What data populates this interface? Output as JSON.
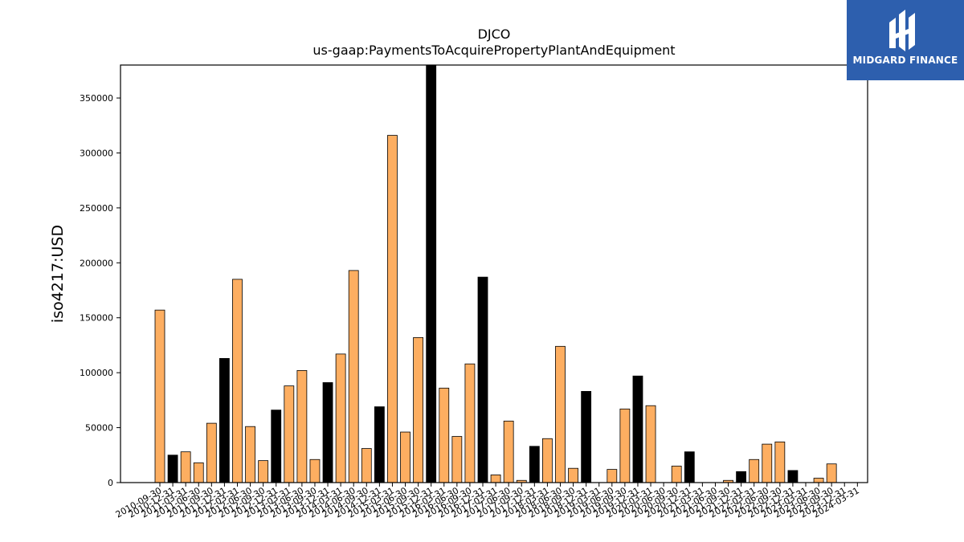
{
  "brand": {
    "name": "MIDGARD FINANCE",
    "background": "#2d5fae",
    "logo_icon": "midgard-mark-icon"
  },
  "chart_data": {
    "type": "bar",
    "title": "DJCO",
    "subtitle": "us-gaap:PaymentsToAcquirePropertyPlantAndEquipment",
    "ylabel": "iso4217:USD",
    "xlabel": "",
    "ylim": [
      0,
      380000
    ],
    "yticks": [
      0,
      50000,
      100000,
      150000,
      200000,
      250000,
      300000,
      350000
    ],
    "grid": false,
    "legend": "none",
    "colors": {
      "regular": "#fdae61",
      "fiscal_year_end": "#000000",
      "edge": "#000000"
    },
    "categories": [
      "2010-09-30",
      "2010-12-31",
      "2011-03-31",
      "2011-06-30",
      "2011-09-30",
      "2011-12-31",
      "2012-03-31",
      "2012-06-30",
      "2012-09-30",
      "2012-12-31",
      "2013-03-31",
      "2013-06-30",
      "2013-09-30",
      "2013-12-31",
      "2014-03-31",
      "2014-06-30",
      "2014-09-30",
      "2014-12-31",
      "2015-03-31",
      "2015-06-30",
      "2015-09-30",
      "2015-12-31",
      "2016-03-31",
      "2016-06-30",
      "2016-09-30",
      "2016-12-31",
      "2017-03-31",
      "2017-06-30",
      "2017-09-30",
      "2017-12-31",
      "2018-03-31",
      "2018-06-30",
      "2018-09-30",
      "2018-12-31",
      "2019-03-31",
      "2019-06-30",
      "2019-09-30",
      "2019-12-31",
      "2020-03-31",
      "2020-06-30",
      "2020-09-30",
      "2020-12-31",
      "2021-03-31",
      "2021-06-30",
      "2021-09-30",
      "2021-12-31",
      "2022-03-31",
      "2022-06-30",
      "2022-09-30",
      "2022-12-31",
      "2023-03-31",
      "2023-06-30",
      "2023-09-30",
      "2023-12-31",
      "2024-03-31"
    ],
    "values": [
      157000,
      25000,
      28000,
      18000,
      54000,
      113000,
      185000,
      51000,
      20000,
      66000,
      88000,
      102000,
      21000,
      91000,
      117000,
      193000,
      31000,
      69000,
      316000,
      46000,
      132000,
      380000,
      86000,
      42000,
      108000,
      187000,
      7000,
      56000,
      2000,
      33000,
      40000,
      124000,
      13000,
      83000,
      0,
      12000,
      67000,
      97000,
      70000,
      0,
      15000,
      28000,
      0,
      0,
      2000,
      10000,
      21000,
      35000,
      37000,
      11000,
      0,
      4000,
      17000,
      0,
      0
    ],
    "highlight": [
      false,
      true,
      false,
      false,
      false,
      true,
      false,
      false,
      false,
      true,
      false,
      false,
      false,
      true,
      false,
      false,
      false,
      true,
      false,
      false,
      false,
      true,
      false,
      false,
      false,
      true,
      false,
      false,
      false,
      true,
      false,
      false,
      false,
      true,
      false,
      false,
      false,
      true,
      false,
      false,
      false,
      true,
      false,
      false,
      false,
      true,
      false,
      false,
      false,
      true,
      false,
      false,
      false,
      true,
      false
    ]
  }
}
